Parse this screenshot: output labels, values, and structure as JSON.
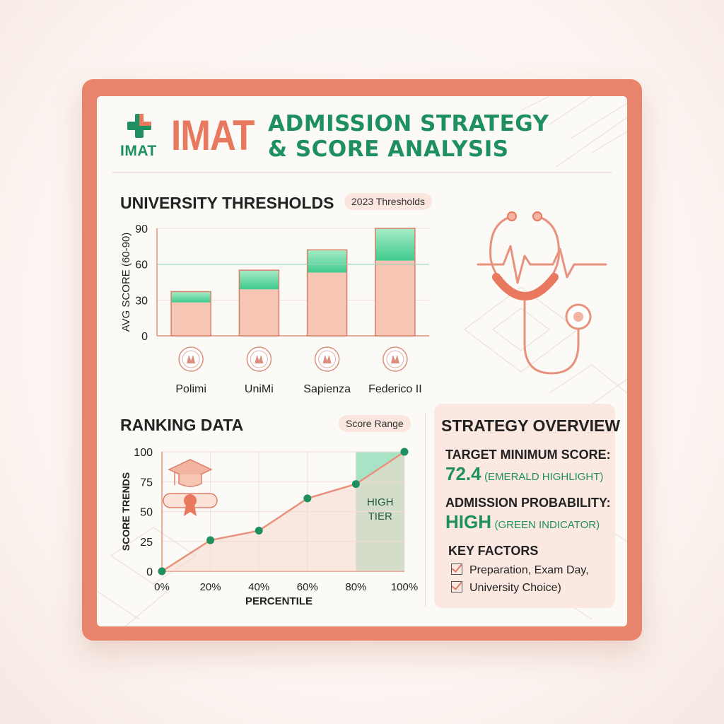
{
  "header": {
    "logo_text": "IMAT",
    "brand": "IMAT",
    "title_line1": "ADMISSION STRATEGY",
    "title_line2": "& SCORE ANALYSIS"
  },
  "thresholds": {
    "title": "UNIVERSITY THRESHOLDS",
    "badge": "2023 Thresholds"
  },
  "ranking": {
    "title": "RANKING DATA",
    "badge": "Score Range",
    "tier_label_1": "HIGH",
    "tier_label_2": "TIER"
  },
  "overview": {
    "title": "STRATEGY OVERVIEW",
    "target_label": "TARGET MINIMUM SCORE:",
    "target_value": "72.4",
    "target_note": "(EMERALD HIGHLIGHT)",
    "prob_label": "ADMISSION PROBABILITY:",
    "prob_value": "HIGH",
    "prob_note": "(GREEN INDICATOR)",
    "factors_label": "KEY FACTORS",
    "factors": [
      "Preparation, Exam Day,",
      "University Choice)"
    ]
  },
  "colors": {
    "accent": "#e8785e",
    "green": "#1e8f5e",
    "bar_fill": "#f6c5b4",
    "bar_highlight": "#3fcb8d",
    "line": "#e8917c"
  },
  "chart_data": [
    {
      "type": "bar",
      "title": "UNIVERSITY THRESHOLDS",
      "ylabel": "AVG SCORE (60-90)",
      "categories": [
        "Polimi",
        "UniMi",
        "Sapienza",
        "Federico II"
      ],
      "ylim": [
        0,
        90
      ],
      "yticks": [
        "0",
        "30",
        "60",
        "90"
      ],
      "reference_line": 60,
      "series": [
        {
          "values": [
            28,
            39,
            53,
            63
          ]
        },
        {
          "values": [
            37,
            55,
            72,
            90
          ]
        }
      ],
      "grid": true
    },
    {
      "type": "line",
      "title": "RANKING DATA",
      "xlabel": "PERCENTILE",
      "ylabel": "SCORE TRENDS",
      "x": [
        0,
        20,
        40,
        60,
        80,
        100
      ],
      "xticks": [
        "0%",
        "20%",
        "40%",
        "60%",
        "80%",
        "100%"
      ],
      "y": [
        0,
        26,
        34,
        61,
        73,
        100
      ],
      "ylim": [
        0,
        100
      ],
      "yticks": [
        "0",
        "25",
        "50",
        "75",
        "100"
      ],
      "highlight_range": [
        80,
        100
      ],
      "grid": true
    }
  ]
}
